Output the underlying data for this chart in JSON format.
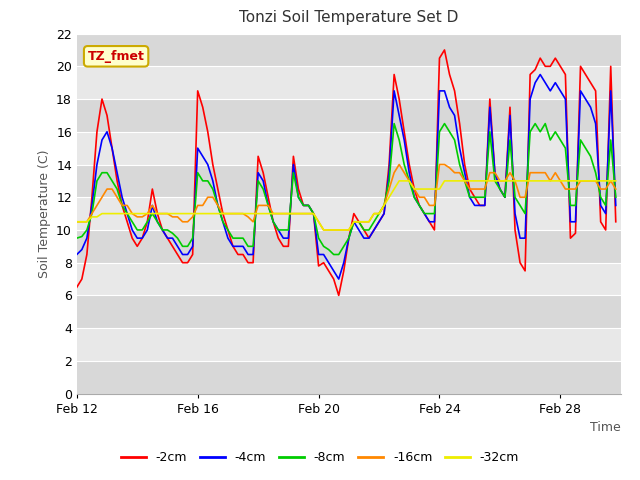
{
  "title": "Tonzi Soil Temperature Set D",
  "xlabel": "Time",
  "ylabel": "Soil Temperature (C)",
  "ylim": [
    0,
    22
  ],
  "yticks": [
    0,
    2,
    4,
    6,
    8,
    10,
    12,
    14,
    16,
    18,
    20,
    22
  ],
  "annotation_text": "TZ_fmet",
  "annotation_bg": "#ffffcc",
  "annotation_border": "#ccaa00",
  "plot_bg_light": "#e8e8e8",
  "plot_bg_dark": "#d8d8d8",
  "fig_bg": "#ffffff",
  "grid_color": "#ffffff",
  "series_colors": [
    "#ff0000",
    "#0000ff",
    "#00cc00",
    "#ff8800",
    "#eeee00"
  ],
  "series_labels": [
    "-2cm",
    "-4cm",
    "-8cm",
    "-16cm",
    "-32cm"
  ],
  "x_tick_labels": [
    "Feb 12",
    "Feb 16",
    "Feb 20",
    "Feb 24",
    "Feb 28"
  ],
  "x_tick_positions": [
    0,
    96,
    192,
    288,
    384
  ],
  "xlim": [
    0,
    432
  ],
  "time_data": [
    0,
    4,
    8,
    12,
    16,
    20,
    24,
    28,
    32,
    36,
    40,
    44,
    48,
    52,
    56,
    60,
    64,
    68,
    72,
    76,
    80,
    84,
    88,
    92,
    96,
    100,
    104,
    108,
    112,
    116,
    120,
    124,
    128,
    132,
    136,
    140,
    144,
    148,
    152,
    156,
    160,
    164,
    168,
    172,
    176,
    180,
    184,
    188,
    192,
    196,
    200,
    204,
    208,
    212,
    216,
    220,
    224,
    228,
    232,
    236,
    240,
    244,
    248,
    252,
    256,
    260,
    264,
    268,
    272,
    276,
    280,
    284,
    288,
    292,
    296,
    300,
    304,
    308,
    312,
    316,
    320,
    324,
    328,
    332,
    336,
    340,
    344,
    348,
    352,
    356,
    360,
    364,
    368,
    372,
    376,
    380,
    384,
    388,
    392,
    396,
    400,
    404,
    408,
    412,
    416,
    420,
    424,
    428
  ],
  "d2cm": [
    6.5,
    7.0,
    8.5,
    12.0,
    16.0,
    18.0,
    17.0,
    15.0,
    13.0,
    11.5,
    10.5,
    9.5,
    9.0,
    9.5,
    10.5,
    12.5,
    11.0,
    10.0,
    9.5,
    9.0,
    8.5,
    8.0,
    8.0,
    8.5,
    18.5,
    17.5,
    16.0,
    14.0,
    12.5,
    11.0,
    10.0,
    9.0,
    8.5,
    8.5,
    8.0,
    8.0,
    14.5,
    13.5,
    12.0,
    10.5,
    9.5,
    9.0,
    9.0,
    14.5,
    12.5,
    11.5,
    11.5,
    11.0,
    7.8,
    8.0,
    7.5,
    7.0,
    6.0,
    7.5,
    9.5,
    11.0,
    10.5,
    10.0,
    9.5,
    10.0,
    10.5,
    11.0,
    14.0,
    19.5,
    18.0,
    16.0,
    14.0,
    12.5,
    11.5,
    11.0,
    10.5,
    10.0,
    20.5,
    21.0,
    19.5,
    18.5,
    16.5,
    14.0,
    12.5,
    12.0,
    11.5,
    11.5,
    18.0,
    13.5,
    12.5,
    12.0,
    17.5,
    10.0,
    8.0,
    7.5,
    19.5,
    19.8,
    20.5,
    20.0,
    20.0,
    20.5,
    20.0,
    19.5,
    9.5,
    9.8,
    20.0,
    19.5,
    19.0,
    18.5,
    10.5,
    10.0,
    20.0,
    10.5
  ],
  "d4cm": [
    8.5,
    8.8,
    9.5,
    11.5,
    14.0,
    15.5,
    16.0,
    15.0,
    13.5,
    12.0,
    11.0,
    10.0,
    9.5,
    9.5,
    10.0,
    11.5,
    10.5,
    10.0,
    9.5,
    9.5,
    9.0,
    8.5,
    8.5,
    9.0,
    15.0,
    14.5,
    14.0,
    13.0,
    11.5,
    10.5,
    9.5,
    9.0,
    9.0,
    9.0,
    8.5,
    8.5,
    13.5,
    13.0,
    11.5,
    10.5,
    10.0,
    9.5,
    9.5,
    14.0,
    12.0,
    11.5,
    11.5,
    11.0,
    8.5,
    8.5,
    8.0,
    7.5,
    7.0,
    8.0,
    9.5,
    10.5,
    10.0,
    9.5,
    9.5,
    10.0,
    10.5,
    11.0,
    13.5,
    18.5,
    17.0,
    15.5,
    13.5,
    12.0,
    11.5,
    11.0,
    10.5,
    10.5,
    18.5,
    18.5,
    17.5,
    17.0,
    15.0,
    13.5,
    12.0,
    11.5,
    11.5,
    11.5,
    17.5,
    13.5,
    12.5,
    12.0,
    17.0,
    11.0,
    9.5,
    9.5,
    18.0,
    19.0,
    19.5,
    19.0,
    18.5,
    19.0,
    18.5,
    18.0,
    10.5,
    10.5,
    18.5,
    18.0,
    17.5,
    16.5,
    11.5,
    11.0,
    18.5,
    11.5
  ],
  "d8cm": [
    9.5,
    9.6,
    10.0,
    11.0,
    13.0,
    13.5,
    13.5,
    13.0,
    12.5,
    11.5,
    11.0,
    10.5,
    10.0,
    10.0,
    10.5,
    11.0,
    10.5,
    10.0,
    10.0,
    9.8,
    9.5,
    9.0,
    9.0,
    9.5,
    13.5,
    13.0,
    13.0,
    12.5,
    11.5,
    10.5,
    10.0,
    9.5,
    9.5,
    9.5,
    9.0,
    9.0,
    13.0,
    12.5,
    11.5,
    10.5,
    10.0,
    10.0,
    10.0,
    13.5,
    12.0,
    11.5,
    11.5,
    11.0,
    9.5,
    9.0,
    8.8,
    8.5,
    8.5,
    9.0,
    9.5,
    10.5,
    10.5,
    10.0,
    10.0,
    10.5,
    11.0,
    11.5,
    13.0,
    16.5,
    15.5,
    14.0,
    13.0,
    12.0,
    11.5,
    11.0,
    11.0,
    11.0,
    16.0,
    16.5,
    16.0,
    15.5,
    14.0,
    13.0,
    12.0,
    12.0,
    12.0,
    12.0,
    16.0,
    13.0,
    12.5,
    12.0,
    15.5,
    12.0,
    11.5,
    11.0,
    16.0,
    16.5,
    16.0,
    16.5,
    15.5,
    16.0,
    15.5,
    15.0,
    11.5,
    11.5,
    15.5,
    15.0,
    14.5,
    13.5,
    12.0,
    11.5,
    15.5,
    12.0
  ],
  "d16cm": [
    10.5,
    10.5,
    10.5,
    11.0,
    11.5,
    12.0,
    12.5,
    12.5,
    12.0,
    11.5,
    11.5,
    11.0,
    10.8,
    10.8,
    11.0,
    11.5,
    11.0,
    11.0,
    11.0,
    10.8,
    10.8,
    10.5,
    10.5,
    10.8,
    11.5,
    11.5,
    12.0,
    12.0,
    11.5,
    11.0,
    11.0,
    11.0,
    11.0,
    11.0,
    10.8,
    10.5,
    11.5,
    11.5,
    11.5,
    11.0,
    11.0,
    11.0,
    11.0,
    11.0,
    11.0,
    11.0,
    11.0,
    11.0,
    10.5,
    10.0,
    10.0,
    10.0,
    10.0,
    10.0,
    10.0,
    10.5,
    10.5,
    10.5,
    10.5,
    11.0,
    11.0,
    11.5,
    12.5,
    13.5,
    14.0,
    13.5,
    13.0,
    12.5,
    12.0,
    12.0,
    11.5,
    11.5,
    14.0,
    14.0,
    13.8,
    13.5,
    13.5,
    13.0,
    12.5,
    12.5,
    12.5,
    12.5,
    13.5,
    13.5,
    13.0,
    13.0,
    13.5,
    13.0,
    12.0,
    12.0,
    13.5,
    13.5,
    13.5,
    13.5,
    13.0,
    13.5,
    13.0,
    12.5,
    12.5,
    12.5,
    13.0,
    13.0,
    13.0,
    13.0,
    12.5,
    12.5,
    13.0,
    12.5
  ],
  "d32cm": [
    10.5,
    10.5,
    10.5,
    10.8,
    10.8,
    11.0,
    11.0,
    11.0,
    11.0,
    11.0,
    11.0,
    11.0,
    11.0,
    11.0,
    11.0,
    11.0,
    11.0,
    11.0,
    11.0,
    11.0,
    11.0,
    11.0,
    11.0,
    11.0,
    11.0,
    11.0,
    11.0,
    11.0,
    11.0,
    11.0,
    11.0,
    11.0,
    11.0,
    11.0,
    11.0,
    11.0,
    11.0,
    11.0,
    11.0,
    11.0,
    11.0,
    11.0,
    11.0,
    11.0,
    11.0,
    11.0,
    11.0,
    11.0,
    10.5,
    10.0,
    10.0,
    10.0,
    10.0,
    10.0,
    10.0,
    10.5,
    10.5,
    10.5,
    10.5,
    11.0,
    11.0,
    11.5,
    12.0,
    12.5,
    13.0,
    13.0,
    13.0,
    12.5,
    12.5,
    12.5,
    12.5,
    12.5,
    12.5,
    13.0,
    13.0,
    13.0,
    13.0,
    13.0,
    13.0,
    13.0,
    13.0,
    13.0,
    13.0,
    13.0,
    13.0,
    13.0,
    13.0,
    13.0,
    13.0,
    13.0,
    13.0,
    13.0,
    13.0,
    13.0,
    13.0,
    13.0,
    13.0,
    13.0,
    13.0,
    13.0,
    13.0,
    13.0,
    13.0,
    13.0,
    13.0,
    13.0,
    13.0,
    13.0
  ]
}
